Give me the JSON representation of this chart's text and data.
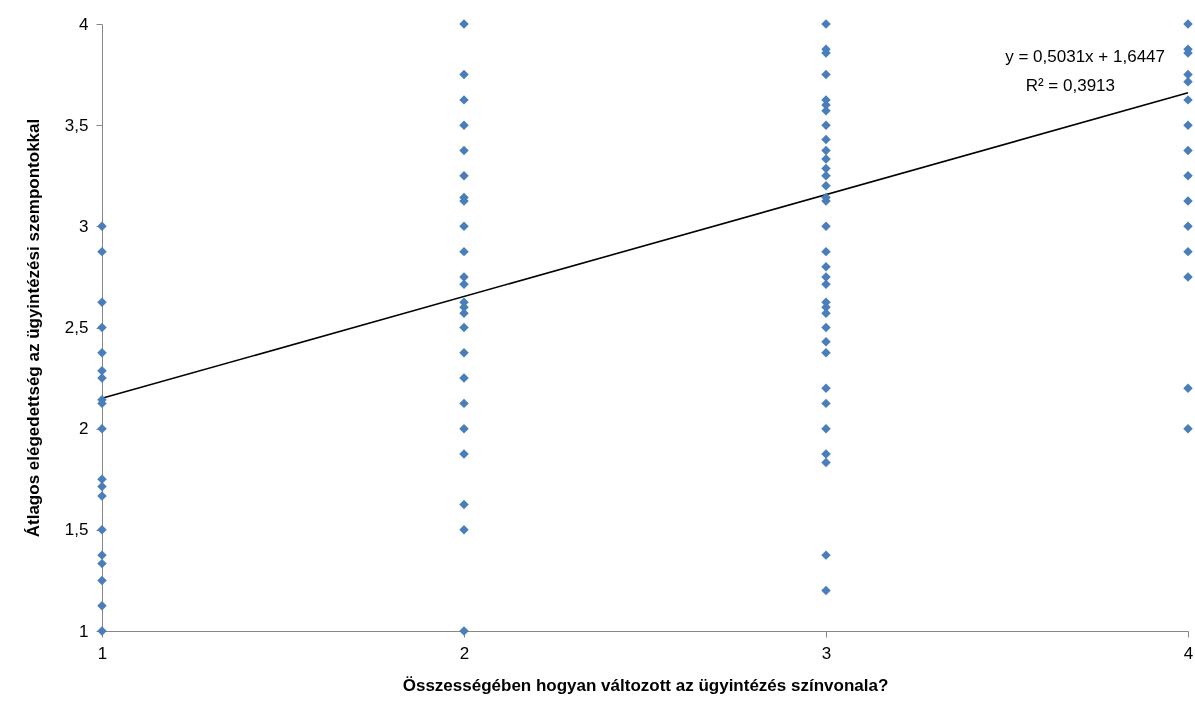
{
  "chart_data": {
    "type": "scatter",
    "xlabel": "Összességében hogyan változott az ügyintézés színvonala?",
    "ylabel": "Átlagos elégedettség az ügyintézési szempontokkal",
    "xlim": [
      1,
      4
    ],
    "xticks": [
      1,
      2,
      3,
      4
    ],
    "ylim": [
      1,
      4
    ],
    "yticks": [
      1,
      {
        "value": 1.5,
        "label": "1,5"
      },
      2,
      {
        "value": 2.5,
        "label": "2,5"
      },
      3,
      {
        "value": 3.5,
        "label": "3,5"
      },
      4
    ],
    "grid": false,
    "series": [
      {
        "marker": "diamond",
        "color": "#4a7ebb",
        "x": [
          1,
          1,
          1,
          1,
          1,
          1,
          1,
          1,
          1,
          1,
          1,
          1,
          1,
          1,
          1,
          1,
          1,
          1,
          1,
          2,
          2,
          2,
          2,
          2,
          2,
          2,
          2,
          2,
          2,
          2,
          2,
          2,
          2,
          2,
          2,
          2,
          2,
          2,
          2,
          2,
          2,
          2,
          2,
          3,
          3,
          3,
          3,
          3,
          3,
          3,
          3,
          3,
          3,
          3,
          3,
          3,
          3,
          3,
          3,
          3,
          3,
          3,
          3,
          3,
          3,
          3,
          3,
          3,
          3,
          3,
          3,
          3,
          3,
          3,
          3,
          3,
          3,
          4,
          4,
          4,
          4,
          4,
          4,
          4,
          4,
          4,
          4,
          4,
          4,
          4,
          4,
          4
        ],
        "values": [
          3,
          2.875,
          2.625,
          2.5,
          2.375,
          2.286,
          2.25,
          2.143,
          2.125,
          2,
          1.75,
          1.714,
          1.667,
          1.5,
          1.375,
          1.333,
          1.25,
          1.125,
          1,
          4,
          3.75,
          3.625,
          3.5,
          3.375,
          3.25,
          3.143,
          3.125,
          3,
          2.875,
          2.75,
          2.714,
          2.625,
          2.6,
          2.571,
          2.5,
          2.375,
          2.25,
          2.125,
          2,
          1.875,
          1.625,
          1.5,
          1,
          4,
          3.875,
          3.857,
          3.75,
          3.625,
          3.6,
          3.571,
          3.5,
          3.429,
          3.375,
          3.333,
          3.286,
          3.25,
          3.2,
          3.143,
          3.125,
          3,
          2.875,
          2.8,
          2.75,
          2.714,
          2.625,
          2.6,
          2.571,
          2.5,
          2.429,
          2.375,
          2.2,
          2.125,
          2,
          1.875,
          1.833,
          1.375,
          1.2,
          4,
          3.875,
          3.857,
          3.75,
          3.714,
          3.625,
          3.5,
          3.375,
          3.25,
          3.125,
          3,
          2.875,
          2.75,
          2.2,
          2
        ]
      },
      {
        "type": "line",
        "marker": "none",
        "color": "#000000",
        "x": [
          1,
          4
        ],
        "values": [
          2.15,
          3.66
        ]
      }
    ],
    "annotations": [
      "y = 0,5031x + 1,6447",
      "R² = 0,3913"
    ]
  }
}
